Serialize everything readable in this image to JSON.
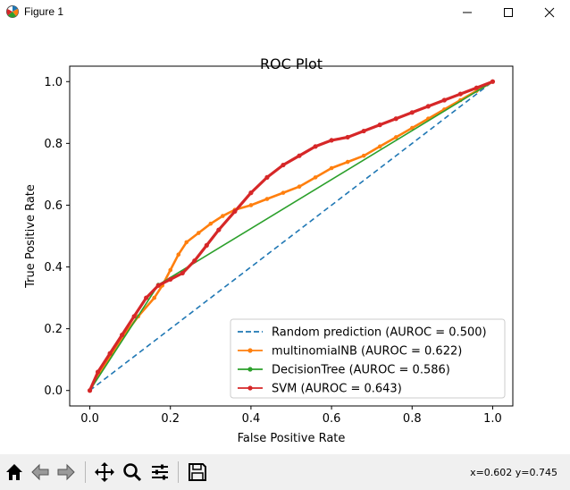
{
  "window": {
    "title": "Figure 1",
    "icons": {
      "app": "matplotlib-icon",
      "minimize": "minimize-icon",
      "maximize": "maximize-icon",
      "close": "close-icon"
    }
  },
  "toolbar": {
    "buttons": [
      {
        "name": "home-icon"
      },
      {
        "name": "back-icon"
      },
      {
        "name": "forward-icon"
      },
      {
        "name": "pan-icon"
      },
      {
        "name": "zoom-icon"
      },
      {
        "name": "configure-subplots-icon"
      },
      {
        "name": "save-icon"
      }
    ],
    "coords": "x=0.602 y=0.745"
  },
  "chart_data": {
    "type": "line",
    "title": "ROC Plot",
    "xlabel": "False Positive Rate",
    "ylabel": "True Positive Rate",
    "xlim": [
      -0.05,
      1.05
    ],
    "ylim": [
      -0.05,
      1.05
    ],
    "xticks": [
      "0.0",
      "0.2",
      "0.4",
      "0.6",
      "0.8",
      "1.0"
    ],
    "yticks": [
      "0.0",
      "0.2",
      "0.4",
      "0.6",
      "0.8",
      "1.0"
    ],
    "grid": false,
    "legend_position": "lower-right",
    "series": [
      {
        "name": "Random prediction (AUROC = 0.500)",
        "color": "#1f77b4",
        "style": "dashed",
        "marker": "none",
        "x": [
          0,
          1
        ],
        "y": [
          0,
          1
        ]
      },
      {
        "name": "multinomialNB (AUROC = 0.622)",
        "color": "#ff7f0e",
        "style": "solid",
        "marker": "dot",
        "x": [
          0,
          0.02,
          0.05,
          0.08,
          0.12,
          0.16,
          0.18,
          0.2,
          0.22,
          0.24,
          0.27,
          0.3,
          0.33,
          0.36,
          0.4,
          0.44,
          0.48,
          0.52,
          0.56,
          0.6,
          0.64,
          0.68,
          0.72,
          0.76,
          0.8,
          0.84,
          0.88,
          0.92,
          0.96,
          1.0
        ],
        "y": [
          0,
          0.05,
          0.11,
          0.17,
          0.24,
          0.3,
          0.34,
          0.39,
          0.44,
          0.48,
          0.51,
          0.54,
          0.565,
          0.585,
          0.6,
          0.62,
          0.64,
          0.66,
          0.69,
          0.72,
          0.74,
          0.76,
          0.79,
          0.82,
          0.85,
          0.88,
          0.91,
          0.94,
          0.97,
          1.0
        ]
      },
      {
        "name": "DecisionTree (AUROC = 0.586)",
        "color": "#2ca02c",
        "style": "solid",
        "marker": "dot",
        "x": [
          0,
          0.17,
          1.0
        ],
        "y": [
          0,
          0.342,
          1.0
        ]
      },
      {
        "name": "SVM (AUROC = 0.643)",
        "color": "#d62728",
        "style": "solid",
        "marker": "dot",
        "x": [
          0,
          0.02,
          0.05,
          0.08,
          0.11,
          0.14,
          0.17,
          0.2,
          0.23,
          0.26,
          0.29,
          0.32,
          0.36,
          0.4,
          0.44,
          0.48,
          0.52,
          0.56,
          0.6,
          0.64,
          0.68,
          0.72,
          0.76,
          0.8,
          0.84,
          0.88,
          0.92,
          0.96,
          1.0
        ],
        "y": [
          0,
          0.06,
          0.12,
          0.18,
          0.24,
          0.3,
          0.34,
          0.36,
          0.38,
          0.42,
          0.47,
          0.52,
          0.58,
          0.64,
          0.69,
          0.73,
          0.76,
          0.79,
          0.81,
          0.82,
          0.84,
          0.86,
          0.88,
          0.9,
          0.92,
          0.94,
          0.96,
          0.98,
          1.0
        ]
      }
    ]
  }
}
